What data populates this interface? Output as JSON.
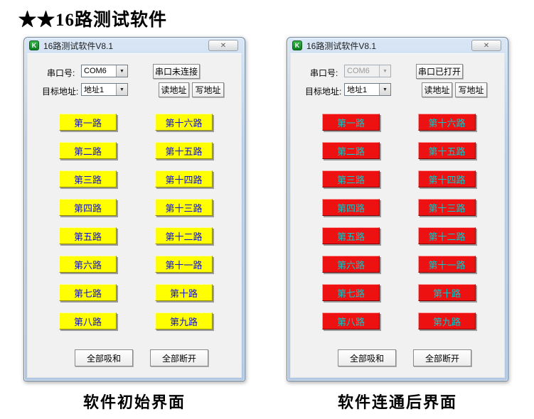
{
  "page": {
    "title": "★★16路测试软件",
    "caption_left": "软件初始界面",
    "caption_right": "软件连通后界面"
  },
  "icons": {
    "app_logo": "K",
    "close": "✕",
    "dropdown_arrow": "▼"
  },
  "windows": {
    "left": {
      "title": "16路测试软件V8.1",
      "com_label": "串口号:",
      "com_value": "COM6",
      "status_button": "串口未连接",
      "addr_label": "目标地址:",
      "addr_value": "地址1",
      "read_button": "读地址",
      "write_button": "写地址",
      "all_on_button": "全部吸和",
      "all_off_button": "全部断开",
      "channel_bg": "#ffff00",
      "channel_fg": "#1212cc",
      "channel_border_light": "#ffffa0",
      "channel_border_dark": "#8b8b00",
      "channels_col1": [
        "第一路",
        "第二路",
        "第三路",
        "第四路",
        "第五路",
        "第六路",
        "第七路",
        "第八路"
      ],
      "channels_col2": [
        "第十六路",
        "第十五路",
        "第十四路",
        "第十三路",
        "第十二路",
        "第十一路",
        "第十路",
        "第九路"
      ]
    },
    "right": {
      "title": "16路测试软件V8.1",
      "com_label": "串口号:",
      "com_value": "COM6",
      "status_button": "串口已打开",
      "addr_label": "目标地址:",
      "addr_value": "地址1",
      "read_button": "读地址",
      "write_button": "写地址",
      "all_on_button": "全部吸和",
      "all_off_button": "全部断开",
      "channel_bg": "#ee1111",
      "channel_fg": "#00cccc",
      "channel_border_light": "#ff9d9d",
      "channel_border_dark": "#7e0000",
      "channels_col1": [
        "第一路",
        "第二路",
        "第三路",
        "第四路",
        "第五路",
        "第六路",
        "第七路",
        "第八路"
      ],
      "channels_col2": [
        "第十六路",
        "第十五路",
        "第十四路",
        "第十三路",
        "第十二路",
        "第十一路",
        "第十路",
        "第九路"
      ]
    }
  }
}
